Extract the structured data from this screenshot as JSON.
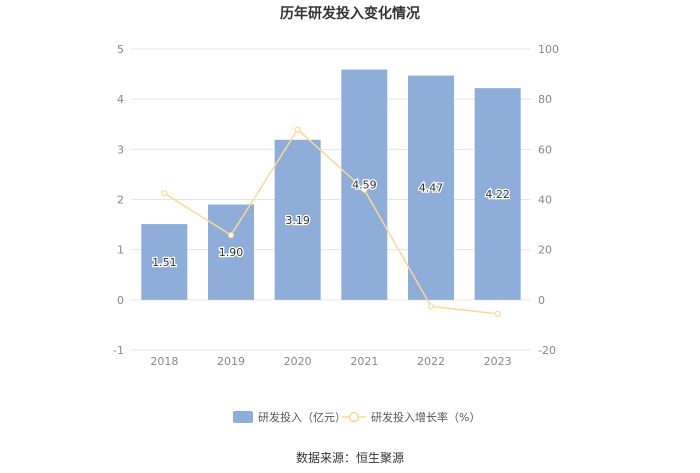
{
  "chart_data": {
    "type": "bar",
    "title": "历年研发投入变化情况",
    "categories": [
      "2018",
      "2019",
      "2020",
      "2021",
      "2022",
      "2023"
    ],
    "series": [
      {
        "name": "研发投入（亿元）",
        "type": "bar",
        "axis": "left",
        "color": "#8eadd9",
        "values": [
          1.51,
          1.9,
          3.19,
          4.59,
          4.47,
          4.22
        ],
        "labels": [
          "1.51",
          "1.90",
          "3.19",
          "4.59",
          "4.47",
          "4.22"
        ]
      },
      {
        "name": "研发投入增长率（%）",
        "type": "line",
        "axis": "right",
        "color": "#fbd89a",
        "values": [
          42.5,
          25.8,
          67.9,
          43.9,
          -2.6,
          -5.6
        ]
      }
    ],
    "y_left": {
      "ylim": [
        -1,
        5
      ],
      "ticks": [
        "-1",
        "0",
        "1",
        "2",
        "3",
        "4",
        "5"
      ]
    },
    "y_right": {
      "ylim": [
        -20,
        100
      ],
      "ticks": [
        "-20",
        "0",
        "20",
        "40",
        "60",
        "80",
        "100"
      ]
    },
    "grid": true,
    "legend": "bottom"
  },
  "source": "数据来源：恒生聚源"
}
